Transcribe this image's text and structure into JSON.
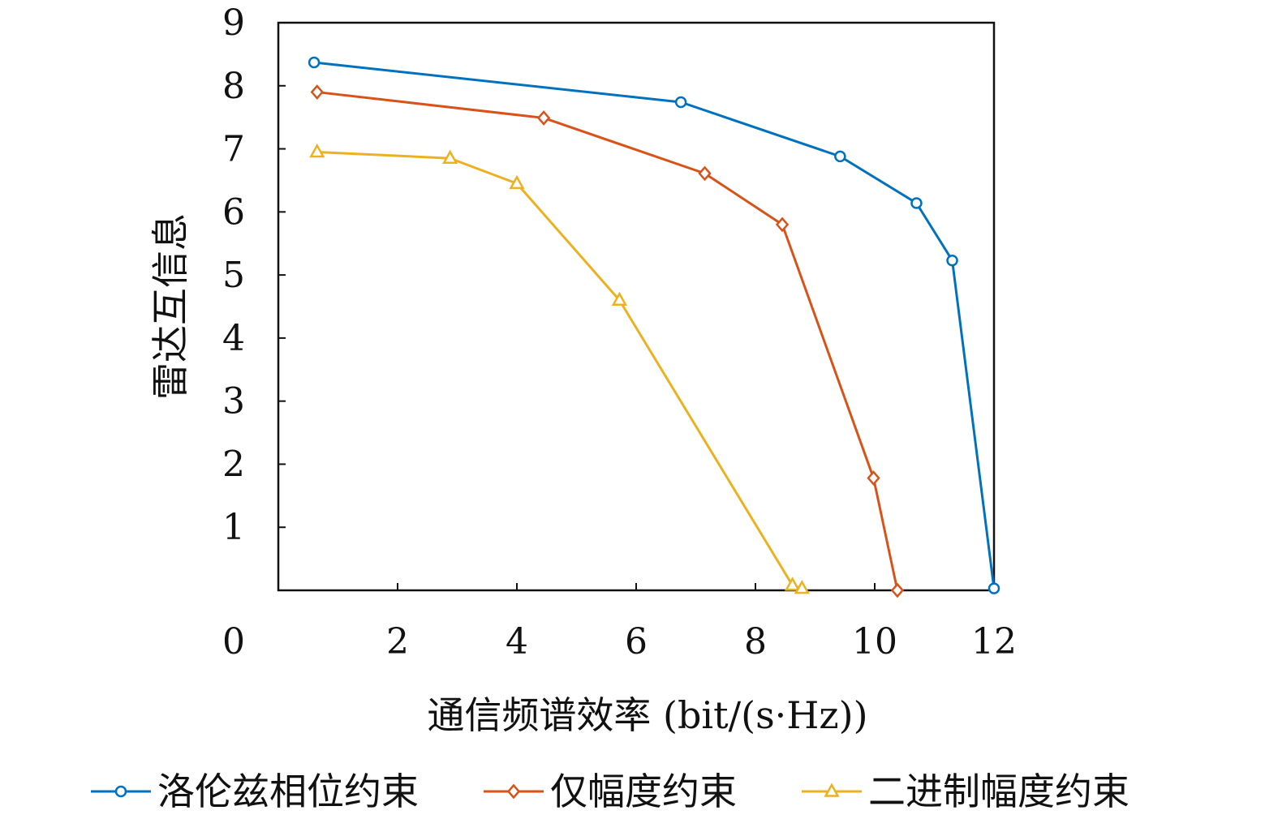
{
  "chart_data": {
    "type": "line",
    "title": "",
    "xlabel": "通信频谱效率 (bit/(s·Hz))",
    "ylabel": "雷达互信息",
    "xlim": [
      0,
      12
    ],
    "ylim": [
      0,
      9
    ],
    "x_ticks": [
      "0",
      "2",
      "4",
      "6",
      "8",
      "10",
      "12"
    ],
    "y_ticks": [
      "1",
      "2",
      "3",
      "4",
      "5",
      "6",
      "7",
      "8",
      "9"
    ],
    "grid": false,
    "legend_position": "bottom",
    "series": [
      {
        "name": "洛伦兹相位约束",
        "color": "#0072BD",
        "marker": "circle",
        "points": [
          [
            0.6,
            8.37
          ],
          [
            6.75,
            7.74
          ],
          [
            9.42,
            6.88
          ],
          [
            10.7,
            6.14
          ],
          [
            11.3,
            5.23
          ],
          [
            12.0,
            0.03
          ]
        ]
      },
      {
        "name": "仅幅度约束",
        "color": "#D95319",
        "marker": "diamond",
        "points": [
          [
            0.65,
            7.9
          ],
          [
            4.45,
            7.49
          ],
          [
            7.15,
            6.61
          ],
          [
            8.45,
            5.8
          ],
          [
            9.98,
            1.78
          ],
          [
            10.38,
            0.0
          ]
        ]
      },
      {
        "name": "二进制幅度约束",
        "color": "#EDB120",
        "marker": "triangle",
        "points": [
          [
            0.65,
            6.95
          ],
          [
            2.88,
            6.85
          ],
          [
            4.0,
            6.45
          ],
          [
            5.72,
            4.6
          ],
          [
            8.62,
            0.08
          ],
          [
            8.78,
            0.03
          ]
        ]
      }
    ]
  }
}
